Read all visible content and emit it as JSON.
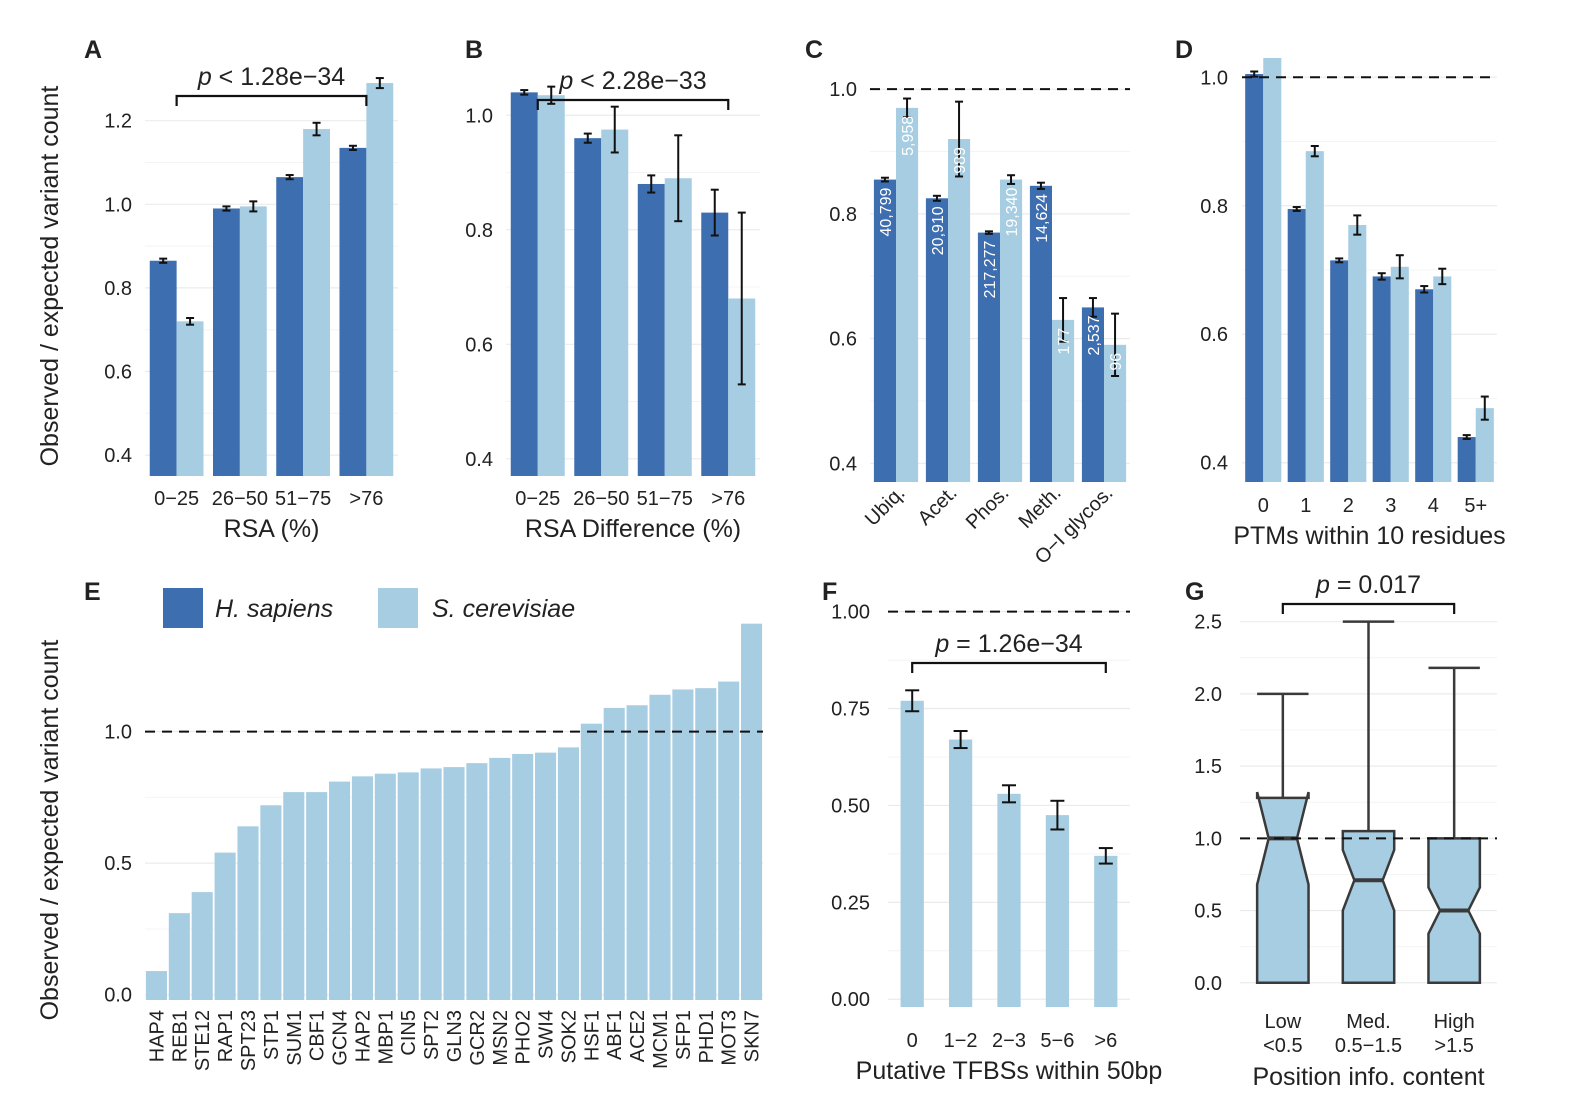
{
  "colors": {
    "human": "#3d6eb0",
    "yeast": "#a6cde2",
    "grid": "#ebebeb",
    "text": "#222222",
    "box_outline": "#3a3a3a"
  },
  "figure": {
    "ylabel_top": "Observed / expected variant count",
    "ylabel_bottom": "Observed / expected variant count",
    "legend": [
      {
        "name": "H. sapiens",
        "color": "#3d6eb0"
      },
      {
        "name": "S. cerevisiae",
        "color": "#a6cde2"
      }
    ]
  },
  "chart_data": [
    {
      "id": "A",
      "panel_label": "A",
      "type": "bar",
      "xlabel": "RSA (%)",
      "categories": [
        "0−25",
        "26−50",
        "51−75",
        ">76"
      ],
      "ylim": [
        0.35,
        1.35
      ],
      "yticks": [
        0.4,
        0.6,
        0.8,
        1.0,
        1.2
      ],
      "ytick_labels": [
        "0.4",
        "0.6",
        "0.8",
        "1.0",
        "1.2"
      ],
      "series": [
        {
          "color": "#3d6eb0",
          "values": [
            0.865,
            0.99,
            1.065,
            1.135
          ],
          "err": [
            0.005,
            0.005,
            0.005,
            0.005
          ]
        },
        {
          "color": "#a6cde2",
          "values": [
            0.72,
            0.995,
            1.18,
            1.29
          ],
          "err": [
            0.008,
            0.012,
            0.015,
            0.012
          ]
        }
      ],
      "bracket": {
        "from": 0,
        "to": 3,
        "label": "p < 1.28e−34"
      }
    },
    {
      "id": "B",
      "panel_label": "B",
      "type": "bar",
      "xlabel": "RSA Difference (%)",
      "categories": [
        "0−25",
        "26−50",
        "51−75",
        ">76"
      ],
      "ylim": [
        0.37,
        1.1
      ],
      "yticks": [
        0.4,
        0.6,
        0.8,
        1.0
      ],
      "ytick_labels": [
        "0.4",
        "0.6",
        "0.8",
        "1.0"
      ],
      "series": [
        {
          "color": "#3d6eb0",
          "values": [
            1.04,
            0.96,
            0.88,
            0.83
          ],
          "err": [
            0.004,
            0.008,
            0.015,
            0.04
          ]
        },
        {
          "color": "#a6cde2",
          "values": [
            1.035,
            0.975,
            0.89,
            0.68
          ],
          "err": [
            0.015,
            0.04,
            0.075,
            0.15
          ]
        }
      ],
      "bracket": {
        "from": 0,
        "to": 3,
        "label": "p < 2.28e−33"
      }
    },
    {
      "id": "C",
      "panel_label": "C",
      "type": "bar",
      "categories": [
        "Ubiq.",
        "Acet.",
        "Phos.",
        "Meth.",
        "O−I glycos."
      ],
      "ylim": [
        0.37,
        1.05
      ],
      "yticks": [
        0.4,
        0.6,
        0.8,
        1.0
      ],
      "ytick_labels": [
        "0.4",
        "0.6",
        "0.8",
        "1.0"
      ],
      "reference_line": 1.0,
      "series": [
        {
          "color": "#3d6eb0",
          "values": [
            0.855,
            0.825,
            0.77,
            0.845,
            0.65
          ],
          "err": [
            0.003,
            0.004,
            0.002,
            0.005,
            0.015
          ],
          "bar_labels": [
            "40,799",
            "20,910",
            "217,277",
            "14,624",
            "2,537"
          ]
        },
        {
          "color": "#a6cde2",
          "values": [
            0.97,
            0.92,
            0.855,
            0.63,
            0.59
          ],
          "err": [
            0.015,
            0.06,
            0.007,
            0.035,
            0.05
          ],
          "bar_labels": [
            "5,958",
            "989",
            "19,340",
            "177",
            "96"
          ]
        }
      ]
    },
    {
      "id": "D",
      "panel_label": "D",
      "type": "bar",
      "xlabel": "PTMs within 10 residues",
      "categories": [
        "0",
        "1",
        "2",
        "3",
        "4",
        "5+"
      ],
      "ylim": [
        0.37,
        1.03
      ],
      "yticks": [
        0.4,
        0.6,
        0.8,
        1.0
      ],
      "ytick_labels": [
        "0.4",
        "0.6",
        "0.8",
        "1.0"
      ],
      "reference_line": 1.0,
      "series": [
        {
          "color": "#3d6eb0",
          "values": [
            1.005,
            0.795,
            0.715,
            0.69,
            0.67,
            0.44
          ],
          "err": [
            0.004,
            0.003,
            0.003,
            0.005,
            0.005,
            0.003
          ]
        },
        {
          "color": "#a6cde2",
          "values": [
            1.03,
            0.885,
            0.77,
            0.705,
            0.69,
            0.485
          ],
          "err": [
            0,
            0.008,
            0.015,
            0.018,
            0.012,
            0.018
          ]
        }
      ]
    },
    {
      "id": "E",
      "panel_label": "E",
      "type": "bar",
      "categories": [
        "HAP4",
        "REB1",
        "STE12",
        "RAP1",
        "SPT23",
        "STP1",
        "SUM1",
        "CBF1",
        "GCN4",
        "HAP2",
        "MBP1",
        "CIN5",
        "SPT2",
        "GLN3",
        "GCR2",
        "MSN2",
        "PHO2",
        "SWI4",
        "SOK2",
        "HSF1",
        "ABF1",
        "ACE2",
        "MCM1",
        "SFP1",
        "PHD1",
        "MOT3",
        "SKN7"
      ],
      "values": [
        0.09,
        0.31,
        0.39,
        0.54,
        0.64,
        0.72,
        0.77,
        0.77,
        0.81,
        0.83,
        0.84,
        0.845,
        0.86,
        0.865,
        0.88,
        0.9,
        0.915,
        0.92,
        0.94,
        1.03,
        1.09,
        1.1,
        1.14,
        1.16,
        1.165,
        1.19,
        1.41
      ],
      "color": "#a6cde2",
      "ylim": [
        -0.02,
        1.5
      ],
      "yticks": [
        0.0,
        0.5,
        1.0
      ],
      "ytick_labels": [
        "0.0",
        "0.5",
        "1.0"
      ],
      "reference_line": 1.0
    },
    {
      "id": "F",
      "panel_label": "F",
      "type": "bar",
      "xlabel": "Putative TFBSs within 50bp",
      "categories": [
        "0",
        "1−2",
        "2−3",
        "5−6",
        ">6"
      ],
      "values": [
        0.77,
        0.67,
        0.53,
        0.475,
        0.37
      ],
      "err": [
        0.027,
        0.022,
        0.022,
        0.037,
        0.02
      ],
      "color": "#a6cde2",
      "ylim": [
        -0.02,
        1.03
      ],
      "yticks": [
        0.0,
        0.25,
        0.5,
        0.75,
        1.0
      ],
      "ytick_labels": [
        "0.00",
        "0.25",
        "0.50",
        "0.75",
        "1.00"
      ],
      "reference_line": 1.0,
      "bracket": {
        "from": 0,
        "to": 4,
        "label": "p = 1.26e−34"
      }
    },
    {
      "id": "G",
      "panel_label": "G",
      "type": "box",
      "xlabel": "Position info. content",
      "categories": [
        [
          "Low",
          "<0.5"
        ],
        [
          "Med.",
          "0.5−1.5"
        ],
        [
          "High",
          ">1.5"
        ]
      ],
      "boxes": [
        {
          "min": 0.0,
          "q1": 0.0,
          "median": 1.0,
          "q3": 1.28,
          "max": 2.0,
          "notch": [
            0.68,
            1.32
          ]
        },
        {
          "min": 0.0,
          "q1": 0.0,
          "median": 0.71,
          "q3": 1.05,
          "max": 2.5,
          "notch": [
            0.5,
            0.92
          ]
        },
        {
          "min": 0.0,
          "q1": 0.0,
          "median": 0.5,
          "q3": 1.0,
          "max": 2.18,
          "notch": [
            0.34,
            0.66
          ]
        }
      ],
      "color": "#a6cde2",
      "ylim": [
        -0.05,
        2.65
      ],
      "yticks": [
        0.0,
        0.5,
        1.0,
        1.5,
        2.0,
        2.5
      ],
      "ytick_labels": [
        "0.0",
        "0.5",
        "1.0",
        "1.5",
        "2.0",
        "2.5"
      ],
      "reference_line": 1.0,
      "bracket": {
        "from": 0,
        "to": 2,
        "label": "p = 0.017"
      }
    }
  ]
}
